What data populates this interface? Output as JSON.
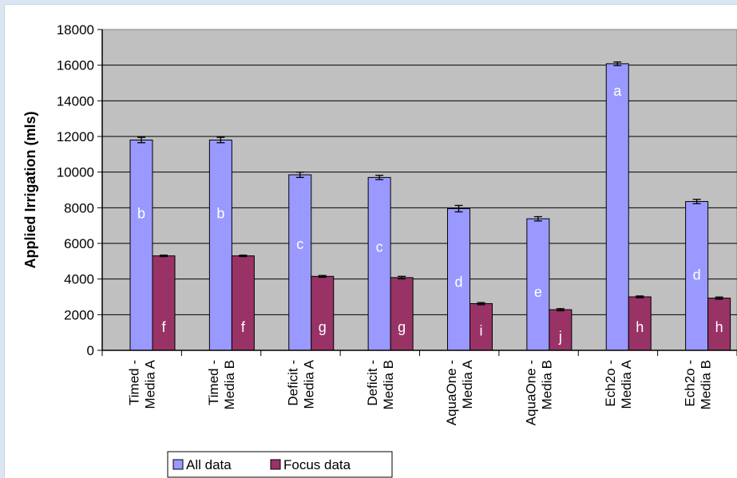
{
  "chart_data": {
    "type": "bar",
    "categories": [
      [
        "Timed -",
        "Media A"
      ],
      [
        "Timed -",
        "Media B"
      ],
      [
        "Deficit -",
        "Media A"
      ],
      [
        "Deficit -",
        "Media B"
      ],
      [
        "AquaOne -",
        "Media A"
      ],
      [
        "AquaOne -",
        "Media B"
      ],
      [
        "Ech2o -",
        "Media A"
      ],
      [
        "Ech2o -",
        "Media B"
      ]
    ],
    "series": [
      {
        "name": "All data",
        "color": "#9999ff",
        "values": [
          11800,
          11800,
          9850,
          9700,
          7950,
          7380,
          16080,
          8350
        ],
        "errors": [
          150,
          150,
          150,
          120,
          180,
          120,
          100,
          120
        ],
        "labels": [
          "b",
          "b",
          "c",
          "c",
          "d",
          "e",
          "a",
          "d"
        ]
      },
      {
        "name": "Focus data",
        "color": "#993366",
        "values": [
          5300,
          5300,
          4150,
          4080,
          2620,
          2280,
          3000,
          2930
        ],
        "errors": [
          40,
          40,
          50,
          70,
          60,
          60,
          50,
          60
        ],
        "labels": [
          "f",
          "f",
          "g",
          "g",
          "i",
          "j",
          "h",
          "h"
        ]
      }
    ],
    "xlabel": "",
    "ylabel": "Applied Irrigation (mls)",
    "ylim": [
      0,
      18000
    ],
    "yticks": [
      "0",
      "2000",
      "4000",
      "6000",
      "8000",
      "10000",
      "12000",
      "14000",
      "16000",
      "18000"
    ],
    "plot_background": "#c0c0c0",
    "grid": true,
    "legend_position": "bottom-left"
  }
}
